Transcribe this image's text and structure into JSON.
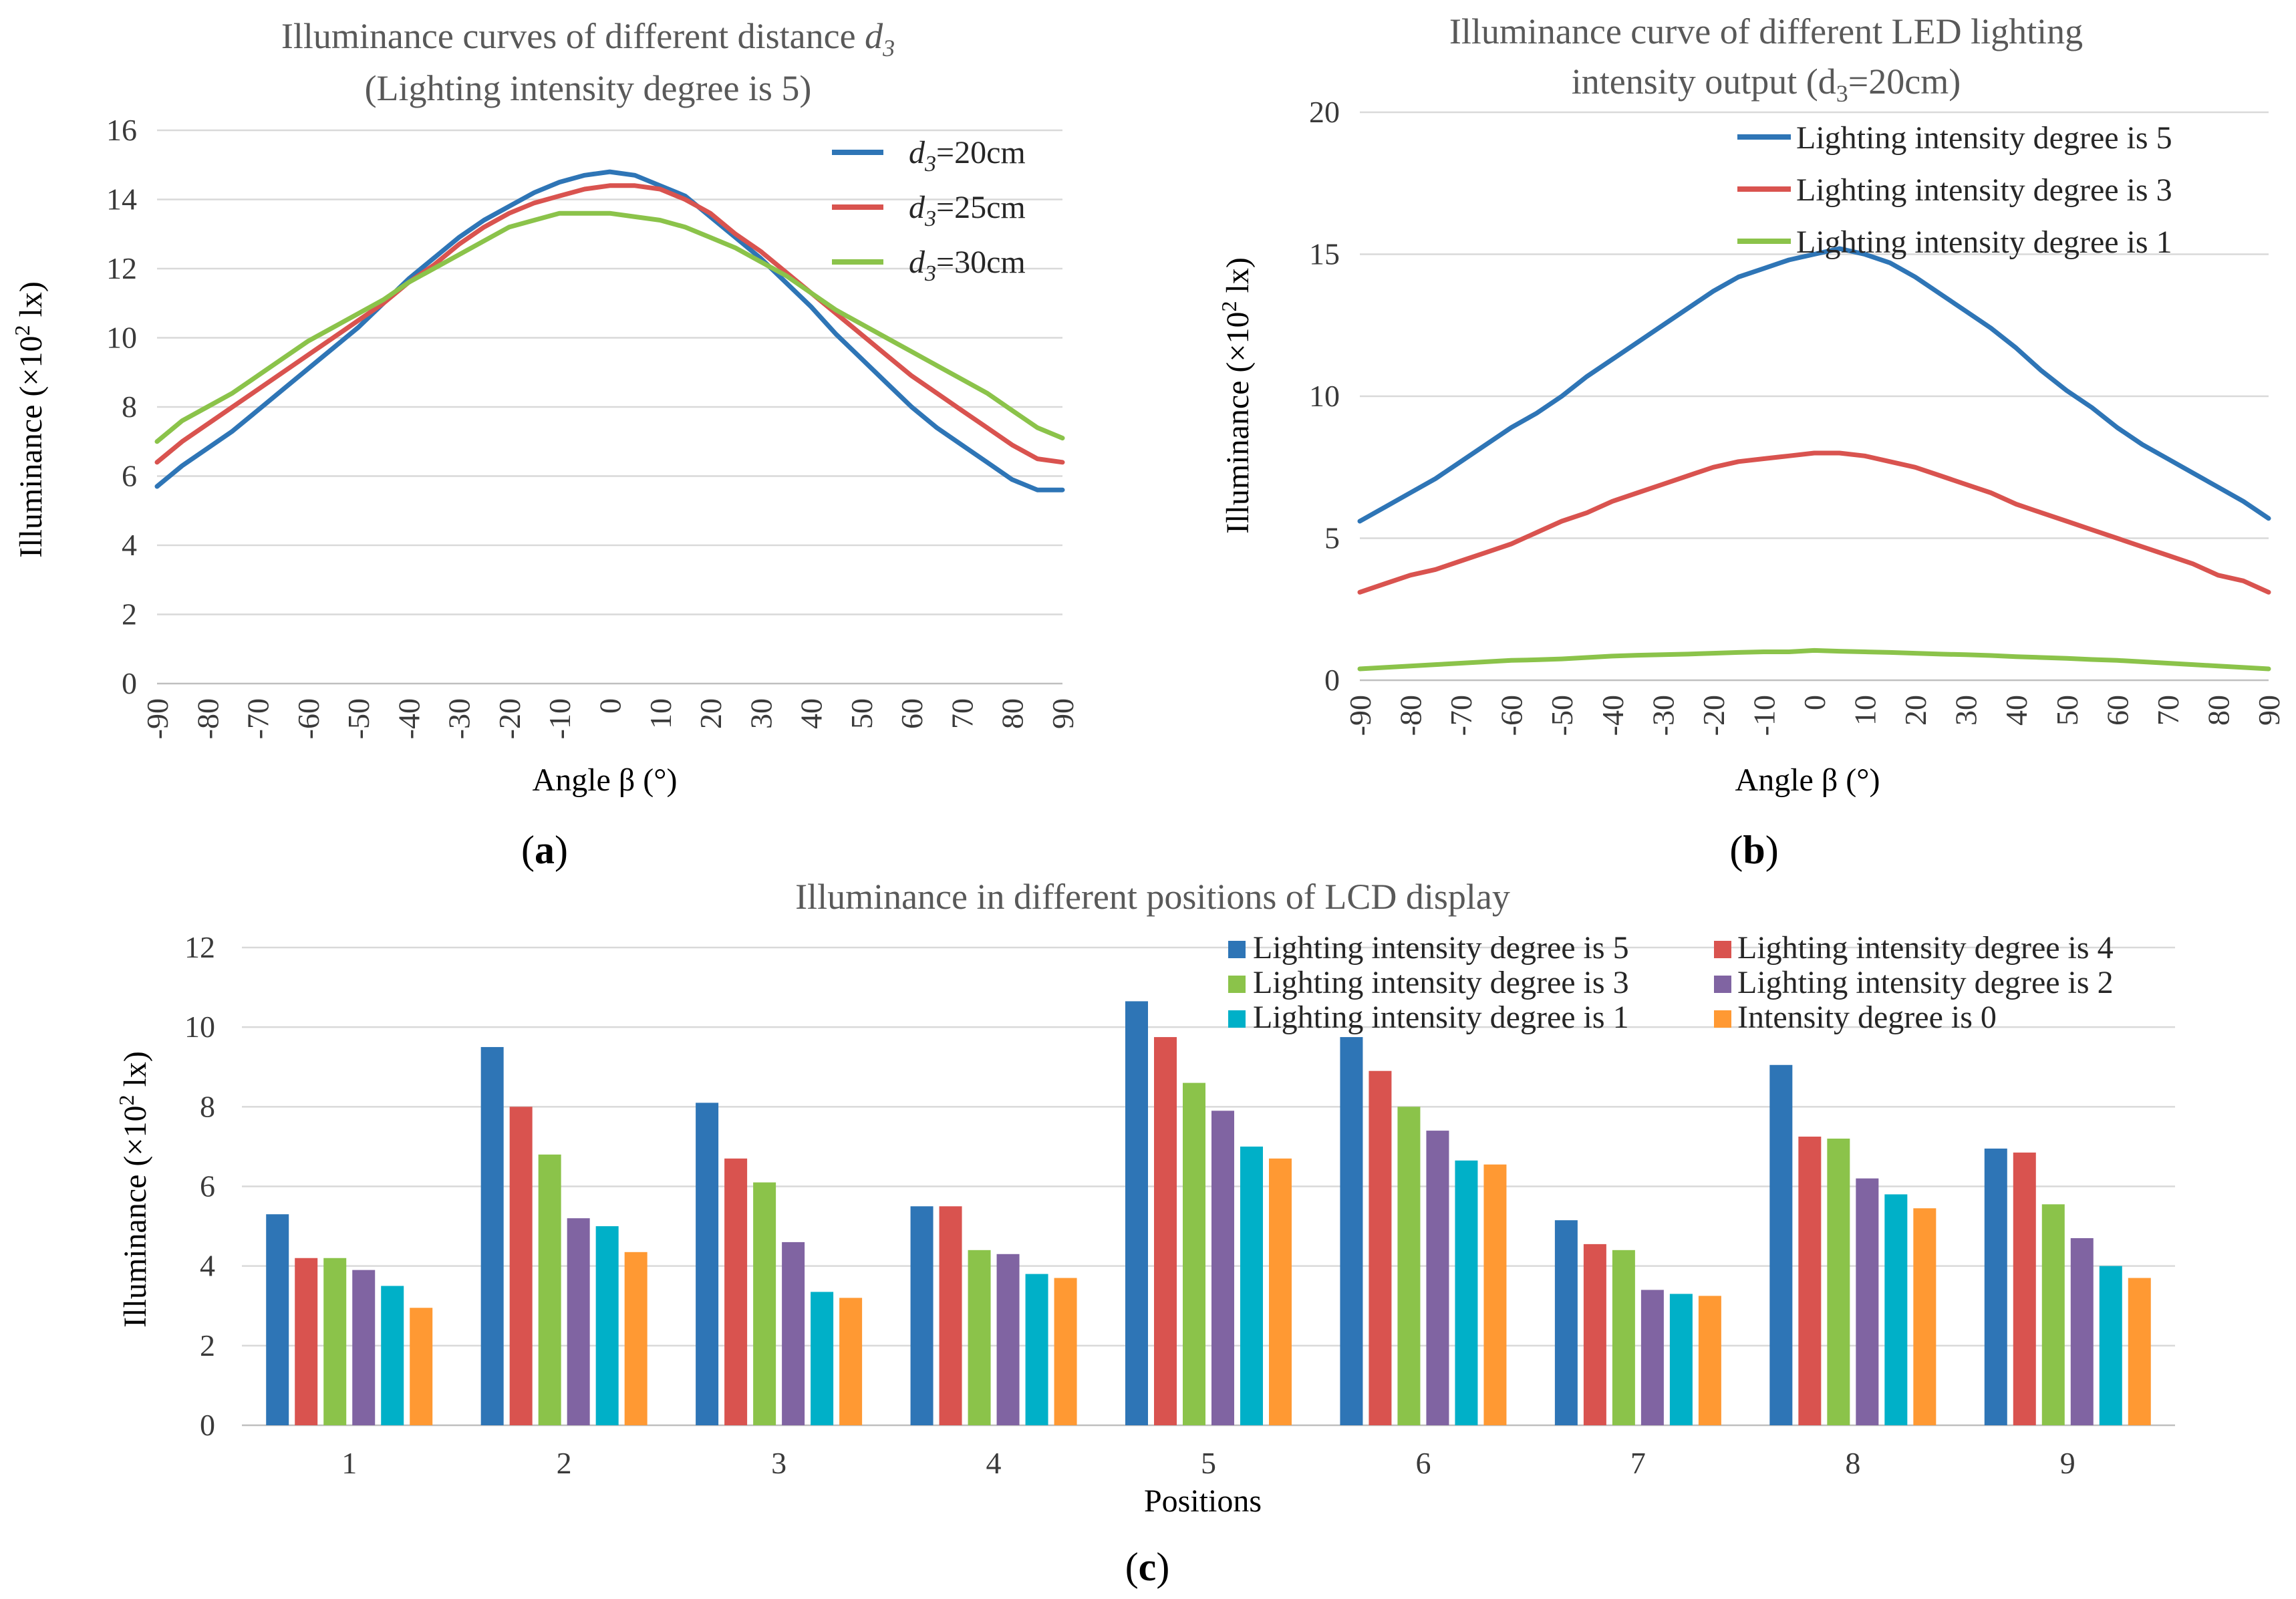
{
  "chart_data": [
    {
      "panel_id": "a",
      "type": "line",
      "panel_label": "a",
      "title_line1_prefix": "Illuminance curves of different distance ",
      "title_line1_var": "d",
      "title_line1_sub": "3",
      "title_line2": "(Lighting intensity degree is 5)",
      "ylabel_prefix": "Illuminance (×10",
      "ylabel_sup": "2",
      "ylabel_suffix": " lx)",
      "xlabel": "Angle β (°)",
      "x": [
        -90,
        -85,
        -80,
        -75,
        -70,
        -65,
        -60,
        -55,
        -50,
        -45,
        -40,
        -35,
        -30,
        -25,
        -20,
        -15,
        -10,
        -5,
        0,
        5,
        10,
        15,
        20,
        25,
        30,
        35,
        40,
        45,
        50,
        55,
        60,
        65,
        70,
        75,
        80,
        85,
        90
      ],
      "xticks": [
        "-90",
        "-80",
        "-70",
        "-60",
        "-50",
        "-40",
        "-30",
        "-20",
        "-10",
        "0",
        "10",
        "20",
        "30",
        "40",
        "50",
        "60",
        "70",
        "80",
        "90"
      ],
      "yticks": [
        "0",
        "2",
        "4",
        "6",
        "8",
        "10",
        "12",
        "14",
        "16"
      ],
      "ylim": [
        0,
        16
      ],
      "legend_position": "top-right",
      "series": [
        {
          "name_var": "d",
          "name_sub": "3",
          "name_suffix": "=20cm",
          "color": "#2e75b6",
          "values": [
            5.7,
            6.3,
            6.8,
            7.3,
            7.9,
            8.5,
            9.1,
            9.7,
            10.3,
            11.0,
            11.7,
            12.3,
            12.9,
            13.4,
            13.8,
            14.2,
            14.5,
            14.7,
            14.8,
            14.7,
            14.4,
            14.1,
            13.5,
            12.9,
            12.3,
            11.6,
            10.9,
            10.1,
            9.4,
            8.7,
            8.0,
            7.4,
            6.9,
            6.4,
            5.9,
            5.6,
            5.6
          ]
        },
        {
          "name_var": "d",
          "name_sub": "3",
          "name_suffix": "=25cm",
          "color": "#d9534f",
          "values": [
            6.4,
            7.0,
            7.5,
            8.0,
            8.5,
            9.0,
            9.5,
            10.0,
            10.5,
            11.0,
            11.6,
            12.1,
            12.7,
            13.2,
            13.6,
            13.9,
            14.1,
            14.3,
            14.4,
            14.4,
            14.3,
            14.0,
            13.6,
            13.0,
            12.5,
            11.9,
            11.3,
            10.7,
            10.1,
            9.5,
            8.9,
            8.4,
            7.9,
            7.4,
            6.9,
            6.5,
            6.4
          ]
        },
        {
          "name_var": "d",
          "name_sub": "3",
          "name_suffix": "=30cm",
          "color": "#8bc34a",
          "values": [
            7.0,
            7.6,
            8.0,
            8.4,
            8.9,
            9.4,
            9.9,
            10.3,
            10.7,
            11.1,
            11.6,
            12.0,
            12.4,
            12.8,
            13.2,
            13.4,
            13.6,
            13.6,
            13.6,
            13.5,
            13.4,
            13.2,
            12.9,
            12.6,
            12.2,
            11.8,
            11.3,
            10.8,
            10.4,
            10.0,
            9.6,
            9.2,
            8.8,
            8.4,
            7.9,
            7.4,
            7.1
          ]
        }
      ]
    },
    {
      "panel_id": "b",
      "type": "line",
      "panel_label": "b",
      "title_line1": "Illuminance curve of different LED lighting",
      "title_line2_prefix": "intensity output (d",
      "title_line2_sub": "3",
      "title_line2_suffix": "=20cm)",
      "ylabel_prefix": "Illuminance (×10",
      "ylabel_sup": "2",
      "ylabel_suffix": " lx)",
      "xlabel": "Angle β (°)",
      "x": [
        -90,
        -85,
        -80,
        -75,
        -70,
        -65,
        -60,
        -55,
        -50,
        -45,
        -40,
        -35,
        -30,
        -25,
        -20,
        -15,
        -10,
        -5,
        0,
        5,
        10,
        15,
        20,
        25,
        30,
        35,
        40,
        45,
        50,
        55,
        60,
        65,
        70,
        75,
        80,
        85,
        90
      ],
      "xticks": [
        "-90",
        "-80",
        "-70",
        "-60",
        "-50",
        "-40",
        "-30",
        "-20",
        "-10",
        "0",
        "10",
        "20",
        "30",
        "40",
        "50",
        "60",
        "70",
        "80",
        "90"
      ],
      "yticks": [
        "0",
        "5",
        "10",
        "15",
        "20"
      ],
      "ylim": [
        0,
        20
      ],
      "legend_position": "top-right",
      "series": [
        {
          "name": "Lighting intensity degree is 5",
          "color": "#2e75b6",
          "values": [
            5.6,
            6.1,
            6.6,
            7.1,
            7.7,
            8.3,
            8.9,
            9.4,
            10.0,
            10.7,
            11.3,
            11.9,
            12.5,
            13.1,
            13.7,
            14.2,
            14.5,
            14.8,
            15.0,
            15.2,
            15.0,
            14.7,
            14.2,
            13.6,
            13.0,
            12.4,
            11.7,
            10.9,
            10.2,
            9.6,
            8.9,
            8.3,
            7.8,
            7.3,
            6.8,
            6.3,
            5.7
          ]
        },
        {
          "name": "Lighting intensity degree is 3",
          "color": "#d9534f",
          "values": [
            3.1,
            3.4,
            3.7,
            3.9,
            4.2,
            4.5,
            4.8,
            5.2,
            5.6,
            5.9,
            6.3,
            6.6,
            6.9,
            7.2,
            7.5,
            7.7,
            7.8,
            7.9,
            8.0,
            8.0,
            7.9,
            7.7,
            7.5,
            7.2,
            6.9,
            6.6,
            6.2,
            5.9,
            5.6,
            5.3,
            5.0,
            4.7,
            4.4,
            4.1,
            3.7,
            3.5,
            3.1
          ]
        },
        {
          "name": "Lighting intensity degree is 1",
          "color": "#8bc34a",
          "values": [
            0.4,
            0.45,
            0.5,
            0.55,
            0.6,
            0.65,
            0.7,
            0.72,
            0.75,
            0.8,
            0.85,
            0.88,
            0.9,
            0.92,
            0.95,
            0.98,
            1.0,
            1.0,
            1.05,
            1.02,
            1.0,
            0.98,
            0.95,
            0.92,
            0.9,
            0.87,
            0.83,
            0.8,
            0.77,
            0.73,
            0.7,
            0.65,
            0.6,
            0.55,
            0.5,
            0.45,
            0.4
          ]
        }
      ]
    },
    {
      "panel_id": "c",
      "type": "bar",
      "panel_label": "c",
      "title": "Illuminance in different positions of LCD display",
      "ylabel_prefix": "Illuminance (×10",
      "ylabel_sup": "2",
      "ylabel_suffix": " lx)",
      "xlabel": "Positions",
      "categories": [
        "1",
        "2",
        "3",
        "4",
        "5",
        "6",
        "7",
        "8",
        "9"
      ],
      "yticks": [
        "0",
        "2",
        "4",
        "6",
        "8",
        "10",
        "12"
      ],
      "ylim": [
        0,
        12
      ],
      "legend_position": "top-right",
      "series": [
        {
          "name": "Lighting intensity degree is 5",
          "color": "#2e75b6",
          "values": [
            5.3,
            9.5,
            8.1,
            5.5,
            10.65,
            9.75,
            5.15,
            9.05,
            6.95
          ]
        },
        {
          "name": "Lighting intensity degree is 4",
          "color": "#d9534f",
          "values": [
            4.2,
            8.0,
            6.7,
            5.5,
            9.75,
            8.9,
            4.55,
            7.25,
            6.85
          ]
        },
        {
          "name": "Lighting intensity degree is 3",
          "color": "#8bc34a",
          "values": [
            4.2,
            6.8,
            6.1,
            4.4,
            8.6,
            8.0,
            4.4,
            7.2,
            5.55
          ]
        },
        {
          "name": "Lighting intensity degree is 2",
          "color": "#8064a2",
          "values": [
            3.9,
            5.2,
            4.6,
            4.3,
            7.9,
            7.4,
            3.4,
            6.2,
            4.7
          ]
        },
        {
          "name": "Lighting intensity degree is 1",
          "color": "#00b0c8",
          "values": [
            3.5,
            5.0,
            3.35,
            3.8,
            7.0,
            6.65,
            3.3,
            5.8,
            4.0
          ]
        },
        {
          "name": "Intensity degree is 0",
          "color": "#ff9933",
          "values": [
            2.95,
            4.35,
            3.2,
            3.7,
            6.7,
            6.55,
            3.25,
            5.45,
            3.7
          ]
        }
      ]
    }
  ]
}
